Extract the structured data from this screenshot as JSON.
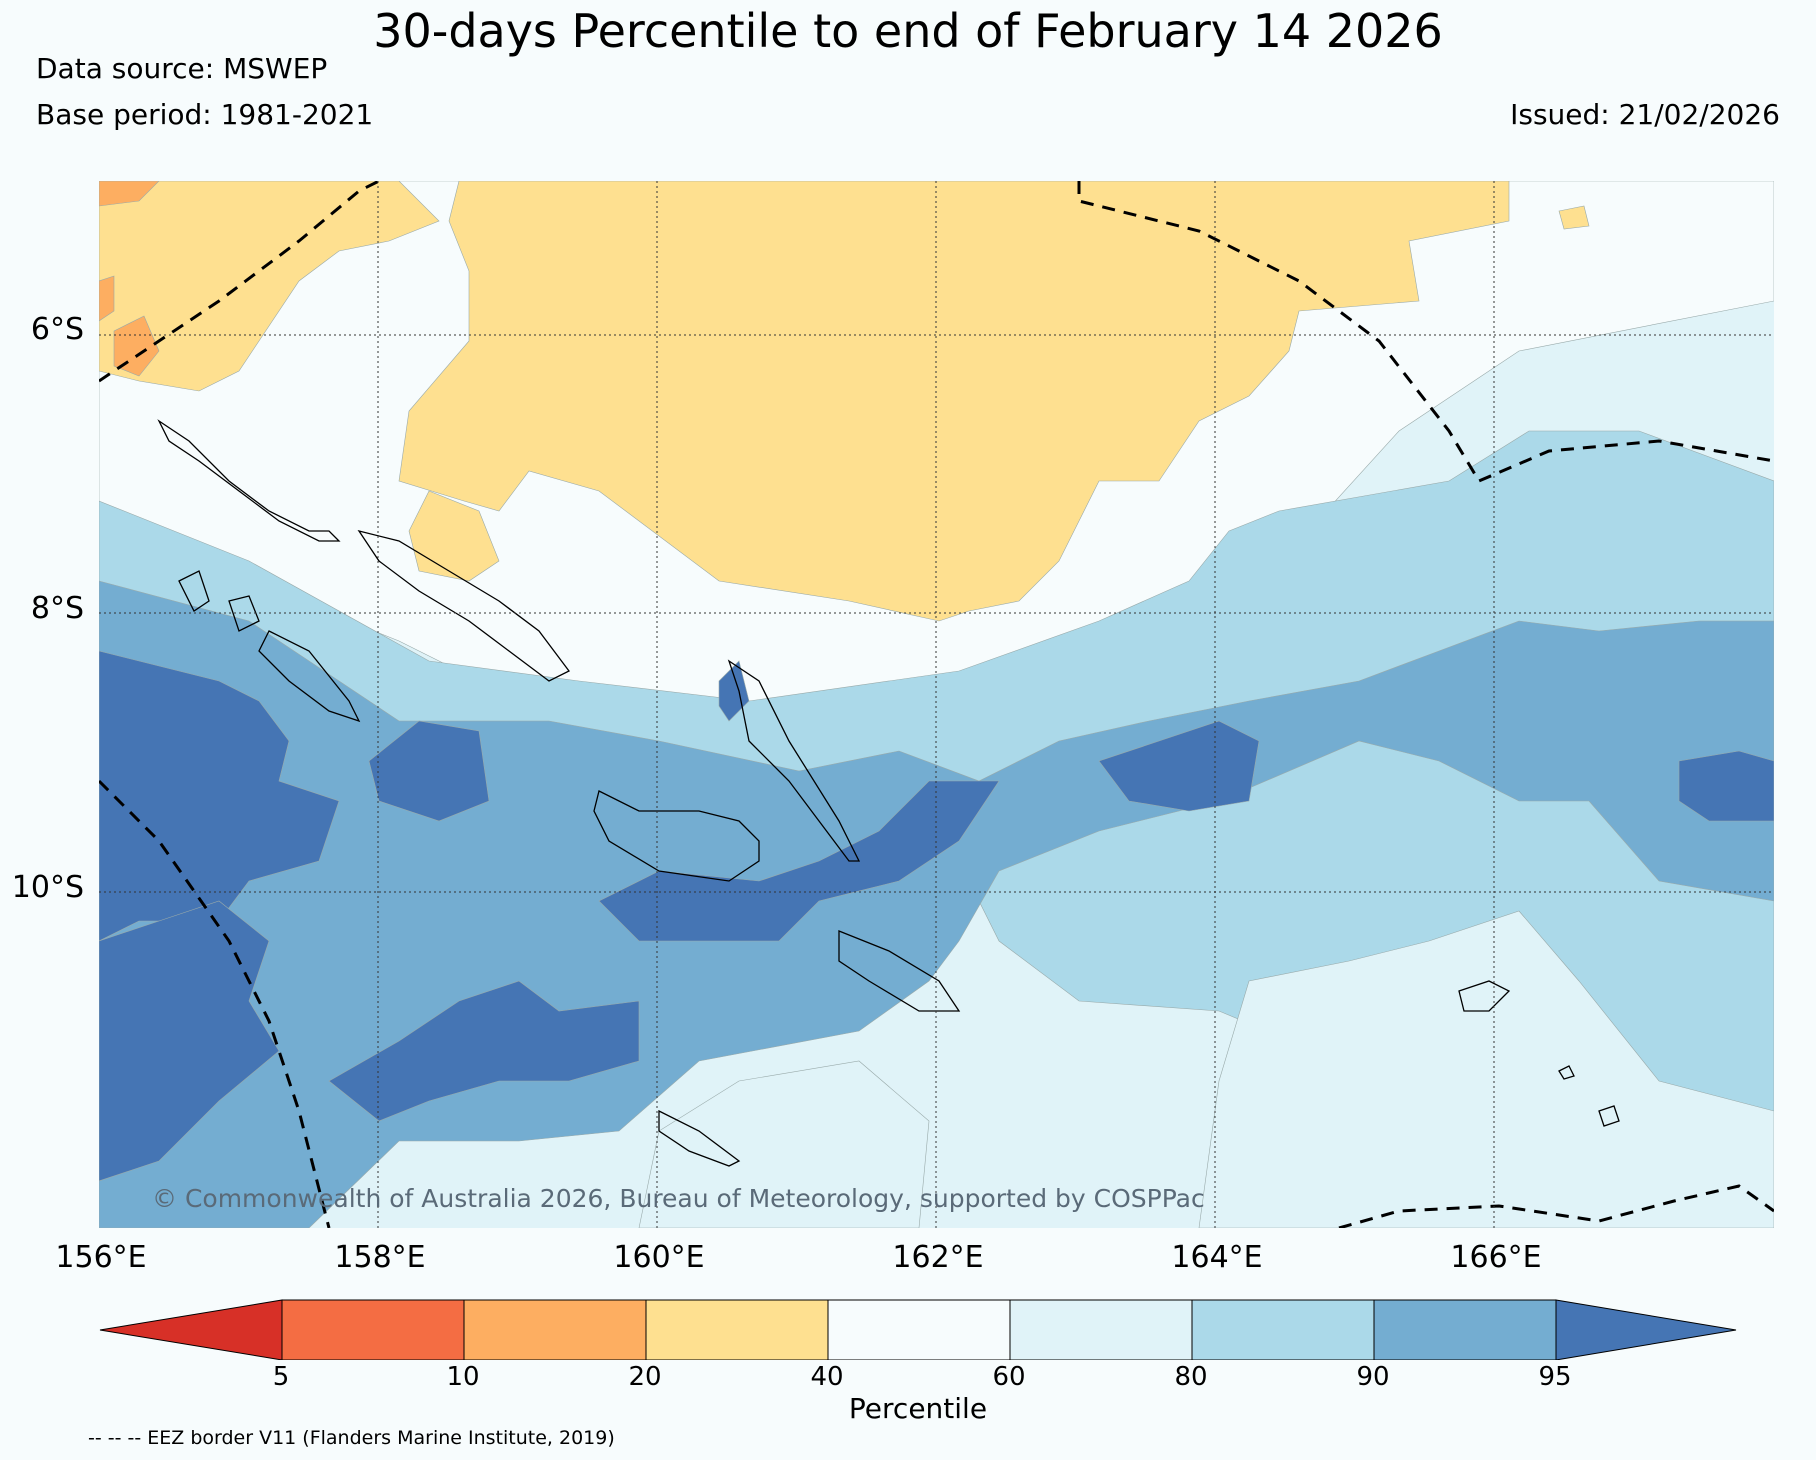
{
  "title": "30-days Percentile to end of February 14 2026",
  "data_source": "Data source: MSWEP",
  "base_period": "Base period: 1981-2021",
  "issued": "Issued: 21/02/2026",
  "copyright": "© Commonwealth of Australia 2026, Bureau of Meteorology, supported by COSPPac",
  "eez_note": "-- -- -- EEZ border V11 (Flanders Marine Institute, 2019)",
  "lat_labels": [
    "6°S",
    "8°S",
    "10°S"
  ],
  "lon_labels": [
    "156°E",
    "158°E",
    "160°E",
    "162°E",
    "164°E",
    "166°E"
  ],
  "colorbar": {
    "label": "Percentile",
    "ticks": [
      "5",
      "10",
      "20",
      "40",
      "60",
      "80",
      "90",
      "95"
    ],
    "colors": [
      "#d73027",
      "#f46d43",
      "#fdae61",
      "#fee090",
      "#f7fcfd",
      "#e0f3f8",
      "#abd9e9",
      "#74add1",
      "#4575b4"
    ]
  }
}
